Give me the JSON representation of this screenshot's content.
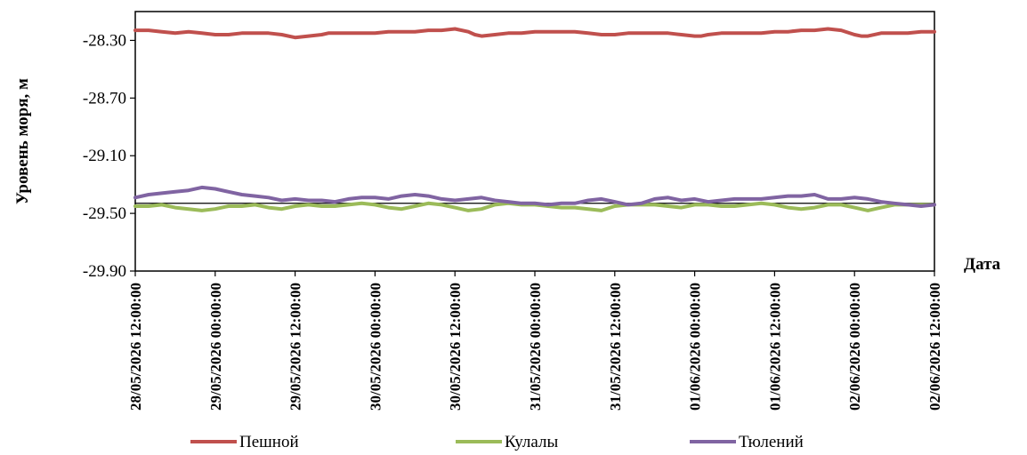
{
  "chart_data": {
    "type": "line",
    "title": "",
    "xlabel": "Дата",
    "ylabel": "Уровень моря, м",
    "ylim": [
      -29.9,
      -28.1
    ],
    "y_ticks": [
      "-28.30",
      "-28.70",
      "-29.10",
      "-29.50",
      "-29.90"
    ],
    "y_tick_values": [
      -28.3,
      -28.7,
      -29.1,
      -29.5,
      -29.9
    ],
    "x_ticks": [
      "28/05/2026 12:00:00",
      "29/05/2026 00:00:00",
      "29/05/2026 12:00:00",
      "30/05/2026 00:00:00",
      "30/05/2026 12:00:00",
      "31/05/2026 00:00:00",
      "31/05/2026 12:00:00",
      "01/06/2026 00:00:00",
      "01/06/2026 12:00:00",
      "02/06/2026 00:00:00",
      "02/06/2026 12:00:00"
    ],
    "x_hours": [
      0,
      12,
      24,
      36,
      48,
      60,
      72,
      84,
      96,
      108,
      120
    ],
    "grid": false,
    "legend_position": "bottom",
    "reference_line": {
      "y": -29.43,
      "color": "#000000"
    },
    "series": [
      {
        "name": "Пешной",
        "color": "#c0504d",
        "x": [
          0,
          2,
          4,
          6,
          8,
          10,
          12,
          14,
          16,
          18,
          20,
          22,
          24,
          26,
          28,
          29,
          30,
          32,
          34,
          36,
          38,
          40,
          42,
          44,
          46,
          48,
          50,
          51,
          52,
          54,
          56,
          58,
          60,
          62,
          64,
          66,
          68,
          70,
          72,
          74,
          76,
          78,
          80,
          82,
          84,
          85,
          86,
          88,
          90,
          92,
          94,
          96,
          98,
          100,
          102,
          104,
          106,
          108,
          109,
          110,
          112,
          114,
          116,
          118,
          120
        ],
        "values": [
          -28.23,
          -28.23,
          -28.24,
          -28.25,
          -28.24,
          -28.25,
          -28.26,
          -28.26,
          -28.25,
          -28.25,
          -28.25,
          -28.26,
          -28.28,
          -28.27,
          -28.26,
          -28.25,
          -28.25,
          -28.25,
          -28.25,
          -28.25,
          -28.24,
          -28.24,
          -28.24,
          -28.23,
          -28.23,
          -28.22,
          -28.24,
          -28.26,
          -28.27,
          -28.26,
          -28.25,
          -28.25,
          -28.24,
          -28.24,
          -28.24,
          -28.24,
          -28.25,
          -28.26,
          -28.26,
          -28.25,
          -28.25,
          -28.25,
          -28.25,
          -28.26,
          -28.27,
          -28.27,
          -28.26,
          -28.25,
          -28.25,
          -28.25,
          -28.25,
          -28.24,
          -28.24,
          -28.23,
          -28.23,
          -28.22,
          -28.23,
          -28.26,
          -28.27,
          -28.27,
          -28.25,
          -28.25,
          -28.25,
          -28.24,
          -28.24
        ]
      },
      {
        "name": "Кулалы",
        "color": "#9bbb59",
        "x": [
          0,
          2,
          4,
          6,
          8,
          10,
          12,
          14,
          16,
          18,
          20,
          22,
          24,
          26,
          28,
          30,
          32,
          34,
          36,
          38,
          40,
          42,
          44,
          46,
          48,
          50,
          52,
          54,
          56,
          58,
          60,
          62,
          64,
          66,
          68,
          70,
          72,
          74,
          76,
          78,
          80,
          82,
          84,
          86,
          88,
          90,
          92,
          94,
          96,
          98,
          100,
          102,
          104,
          106,
          108,
          110,
          112,
          114,
          116,
          118,
          120
        ],
        "values": [
          -29.45,
          -29.45,
          -29.44,
          -29.46,
          -29.47,
          -29.48,
          -29.47,
          -29.45,
          -29.45,
          -29.44,
          -29.46,
          -29.47,
          -29.45,
          -29.44,
          -29.45,
          -29.45,
          -29.44,
          -29.43,
          -29.44,
          -29.46,
          -29.47,
          -29.45,
          -29.43,
          -29.44,
          -29.46,
          -29.48,
          -29.47,
          -29.44,
          -29.43,
          -29.44,
          -29.44,
          -29.45,
          -29.46,
          -29.46,
          -29.47,
          -29.48,
          -29.45,
          -29.44,
          -29.44,
          -29.44,
          -29.45,
          -29.46,
          -29.44,
          -29.44,
          -29.45,
          -29.45,
          -29.44,
          -29.43,
          -29.44,
          -29.46,
          -29.47,
          -29.46,
          -29.44,
          -29.44,
          -29.46,
          -29.48,
          -29.46,
          -29.44,
          -29.44,
          -29.44,
          -29.44
        ]
      },
      {
        "name": "Тюлений",
        "color": "#8064a2",
        "x": [
          0,
          2,
          4,
          6,
          8,
          10,
          12,
          14,
          16,
          18,
          20,
          22,
          24,
          26,
          28,
          30,
          32,
          34,
          36,
          38,
          40,
          42,
          44,
          46,
          48,
          50,
          52,
          54,
          56,
          58,
          60,
          62,
          64,
          66,
          68,
          70,
          72,
          74,
          76,
          78,
          80,
          82,
          84,
          86,
          88,
          90,
          92,
          94,
          96,
          98,
          100,
          102,
          104,
          106,
          108,
          110,
          112,
          114,
          116,
          118,
          120
        ],
        "values": [
          -29.39,
          -29.37,
          -29.36,
          -29.35,
          -29.34,
          -29.32,
          -29.33,
          -29.35,
          -29.37,
          -29.38,
          -29.39,
          -29.41,
          -29.4,
          -29.41,
          -29.41,
          -29.42,
          -29.4,
          -29.39,
          -29.39,
          -29.4,
          -29.38,
          -29.37,
          -29.38,
          -29.4,
          -29.41,
          -29.4,
          -29.39,
          -29.41,
          -29.42,
          -29.43,
          -29.43,
          -29.44,
          -29.43,
          -29.43,
          -29.41,
          -29.4,
          -29.42,
          -29.44,
          -29.43,
          -29.4,
          -29.39,
          -29.41,
          -29.4,
          -29.42,
          -29.41,
          -29.4,
          -29.4,
          -29.4,
          -29.39,
          -29.38,
          -29.38,
          -29.37,
          -29.4,
          -29.4,
          -29.39,
          -29.4,
          -29.42,
          -29.43,
          -29.44,
          -29.45,
          -29.44
        ]
      }
    ]
  }
}
